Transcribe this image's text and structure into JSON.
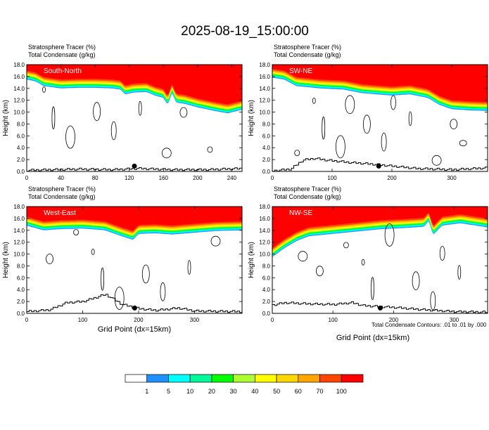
{
  "title": "2025-08-19_15:00:00",
  "chart_data": [
    {
      "type": "heatmap",
      "panel_label": "South-North",
      "header_lines": [
        "Stratosphere Tracer   (%)",
        "Total Condensate   (g/kg)"
      ],
      "xlabel": "",
      "ylabel": "Height (km)",
      "xlim": [
        0,
        252
      ],
      "ylim": [
        0,
        18
      ],
      "xticks": [
        0,
        40,
        80,
        120,
        160,
        200,
        240
      ],
      "yticks": [
        "0.0",
        "2.0",
        "4.0",
        "6.0",
        "8.0",
        "10.0",
        "12.0",
        "14.0",
        "16.0",
        "18.0"
      ],
      "tropopause_km": [
        [
          0,
          15.5
        ],
        [
          10,
          15.2
        ],
        [
          20,
          14.4
        ],
        [
          40,
          14.0
        ],
        [
          60,
          14.1
        ],
        [
          80,
          14.1
        ],
        [
          100,
          14.0
        ],
        [
          110,
          13.8
        ],
        [
          115,
          13.0
        ],
        [
          125,
          13.3
        ],
        [
          140,
          13.4
        ],
        [
          150,
          12.8
        ],
        [
          160,
          12.4
        ],
        [
          165,
          11.2
        ],
        [
          170,
          13.2
        ],
        [
          175,
          11.6
        ],
        [
          185,
          11.4
        ],
        [
          200,
          10.8
        ],
        [
          220,
          10.2
        ],
        [
          235,
          9.8
        ],
        [
          252,
          10.4
        ]
      ],
      "terrain_km": [
        [
          0,
          0.2
        ],
        [
          60,
          0.4
        ],
        [
          100,
          0.3
        ],
        [
          130,
          0.5
        ],
        [
          170,
          0.3
        ],
        [
          210,
          0.3
        ],
        [
          252,
          0.5
        ]
      ],
      "marker": {
        "x": 126,
        "y": 0.9
      },
      "condensate_contours_count": 9
    },
    {
      "type": "heatmap",
      "panel_label": "SW-NE",
      "header_lines": [
        "Stratosphere Tracer   (%)",
        "Total Condensate   (g/kg)"
      ],
      "xlabel": "",
      "ylabel": "Height (km)",
      "xlim": [
        0,
        360
      ],
      "ylim": [
        0,
        18
      ],
      "xticks": [
        0,
        100,
        200,
        300
      ],
      "yticks": [
        "0.0",
        "2.0",
        "4.0",
        "6.0",
        "8.0",
        "10.0",
        "12.0",
        "14.0",
        "16.0",
        "18.0"
      ],
      "tropopause_km": [
        [
          0,
          15.8
        ],
        [
          20,
          15.5
        ],
        [
          40,
          14.4
        ],
        [
          80,
          14.0
        ],
        [
          120,
          13.8
        ],
        [
          150,
          13.2
        ],
        [
          175,
          13.0
        ],
        [
          200,
          12.8
        ],
        [
          230,
          13.0
        ],
        [
          260,
          12.4
        ],
        [
          280,
          11.2
        ],
        [
          300,
          10.5
        ],
        [
          330,
          10.3
        ],
        [
          360,
          10.2
        ]
      ],
      "terrain_km": [
        [
          0,
          0.1
        ],
        [
          30,
          0.4
        ],
        [
          50,
          1.9
        ],
        [
          70,
          2.2
        ],
        [
          90,
          1.9
        ],
        [
          130,
          1.5
        ],
        [
          170,
          1.2
        ],
        [
          200,
          0.9
        ],
        [
          240,
          0.5
        ],
        [
          300,
          0.3
        ],
        [
          360,
          0.6
        ]
      ],
      "marker": {
        "x": 178,
        "y": 0.9
      },
      "condensate_contours_count": 12
    },
    {
      "type": "heatmap",
      "panel_label": "West-East",
      "header_lines": [
        "Stratosphere Tracer   (%)",
        "Total Condensate   (g/kg)"
      ],
      "xlabel": "Grid Point (dx=15km)",
      "ylabel": "Height (km)",
      "xlim": [
        0,
        385
      ],
      "ylim": [
        0,
        18
      ],
      "xticks": [
        0,
        100,
        200,
        300
      ],
      "yticks": [
        "0.0",
        "2.0",
        "4.0",
        "6.0",
        "8.0",
        "10.0",
        "12.0",
        "14.0",
        "16.0",
        "18.0"
      ],
      "tropopause_km": [
        [
          0,
          14.8
        ],
        [
          30,
          14.0
        ],
        [
          60,
          14.2
        ],
        [
          100,
          14.3
        ],
        [
          140,
          14.0
        ],
        [
          170,
          13.0
        ],
        [
          190,
          12.4
        ],
        [
          200,
          13.4
        ],
        [
          230,
          13.5
        ],
        [
          260,
          13.3
        ],
        [
          300,
          13.6
        ],
        [
          340,
          13.9
        ],
        [
          385,
          14.0
        ]
      ],
      "terrain_km": [
        [
          0,
          0.3
        ],
        [
          40,
          0.6
        ],
        [
          70,
          1.8
        ],
        [
          100,
          2.0
        ],
        [
          140,
          3.2
        ],
        [
          170,
          1.5
        ],
        [
          200,
          0.8
        ],
        [
          230,
          0.5
        ],
        [
          270,
          0.9
        ],
        [
          300,
          0.4
        ],
        [
          385,
          0.3
        ]
      ],
      "marker": {
        "x": 193,
        "y": 0.9
      },
      "condensate_contours_count": 9
    },
    {
      "type": "heatmap",
      "panel_label": "NW-SE",
      "header_lines": [
        "Stratosphere Tracer   (%)",
        "Total Condensate   (g/kg)"
      ],
      "xlabel": "Grid Point (dx=15km)",
      "ylabel": "Height (km)",
      "xlim": [
        0,
        355
      ],
      "ylim": [
        0,
        18
      ],
      "xticks": [
        0,
        100,
        200,
        300
      ],
      "yticks": [
        "0.0",
        "2.0",
        "4.0",
        "6.0",
        "8.0",
        "10.0",
        "12.0",
        "14.0",
        "16.0",
        "18.0"
      ],
      "tropopause_km": [
        [
          0,
          9.5
        ],
        [
          20,
          11.0
        ],
        [
          40,
          12.2
        ],
        [
          60,
          13.0
        ],
        [
          100,
          13.4
        ],
        [
          140,
          13.8
        ],
        [
          180,
          14.2
        ],
        [
          220,
          14.4
        ],
        [
          250,
          14.6
        ],
        [
          258,
          15.6
        ],
        [
          265,
          13.2
        ],
        [
          280,
          14.8
        ],
        [
          310,
          15.2
        ],
        [
          355,
          14.5
        ]
      ],
      "terrain_km": [
        [
          0,
          1.4
        ],
        [
          20,
          1.8
        ],
        [
          60,
          1.6
        ],
        [
          100,
          1.5
        ],
        [
          130,
          1.8
        ],
        [
          150,
          1.3
        ],
        [
          200,
          1.0
        ],
        [
          250,
          0.6
        ],
        [
          300,
          0.3
        ],
        [
          355,
          0.2
        ]
      ],
      "marker": {
        "x": 178,
        "y": 0.9
      },
      "condensate_contours_count": 10
    }
  ],
  "contour_note": "Total Condensate Contours: .01 to .01 by .000",
  "colorbar": {
    "levels": [
      "1",
      "5",
      "10",
      "20",
      "30",
      "40",
      "50",
      "60",
      "70",
      "100"
    ],
    "colors": [
      "#ffffff",
      "#1e90ff",
      "#00ffff",
      "#00fa9a",
      "#00ff00",
      "#adff2f",
      "#ffff00",
      "#ffd700",
      "#ffa500",
      "#ff4500",
      "#ff0000"
    ]
  }
}
